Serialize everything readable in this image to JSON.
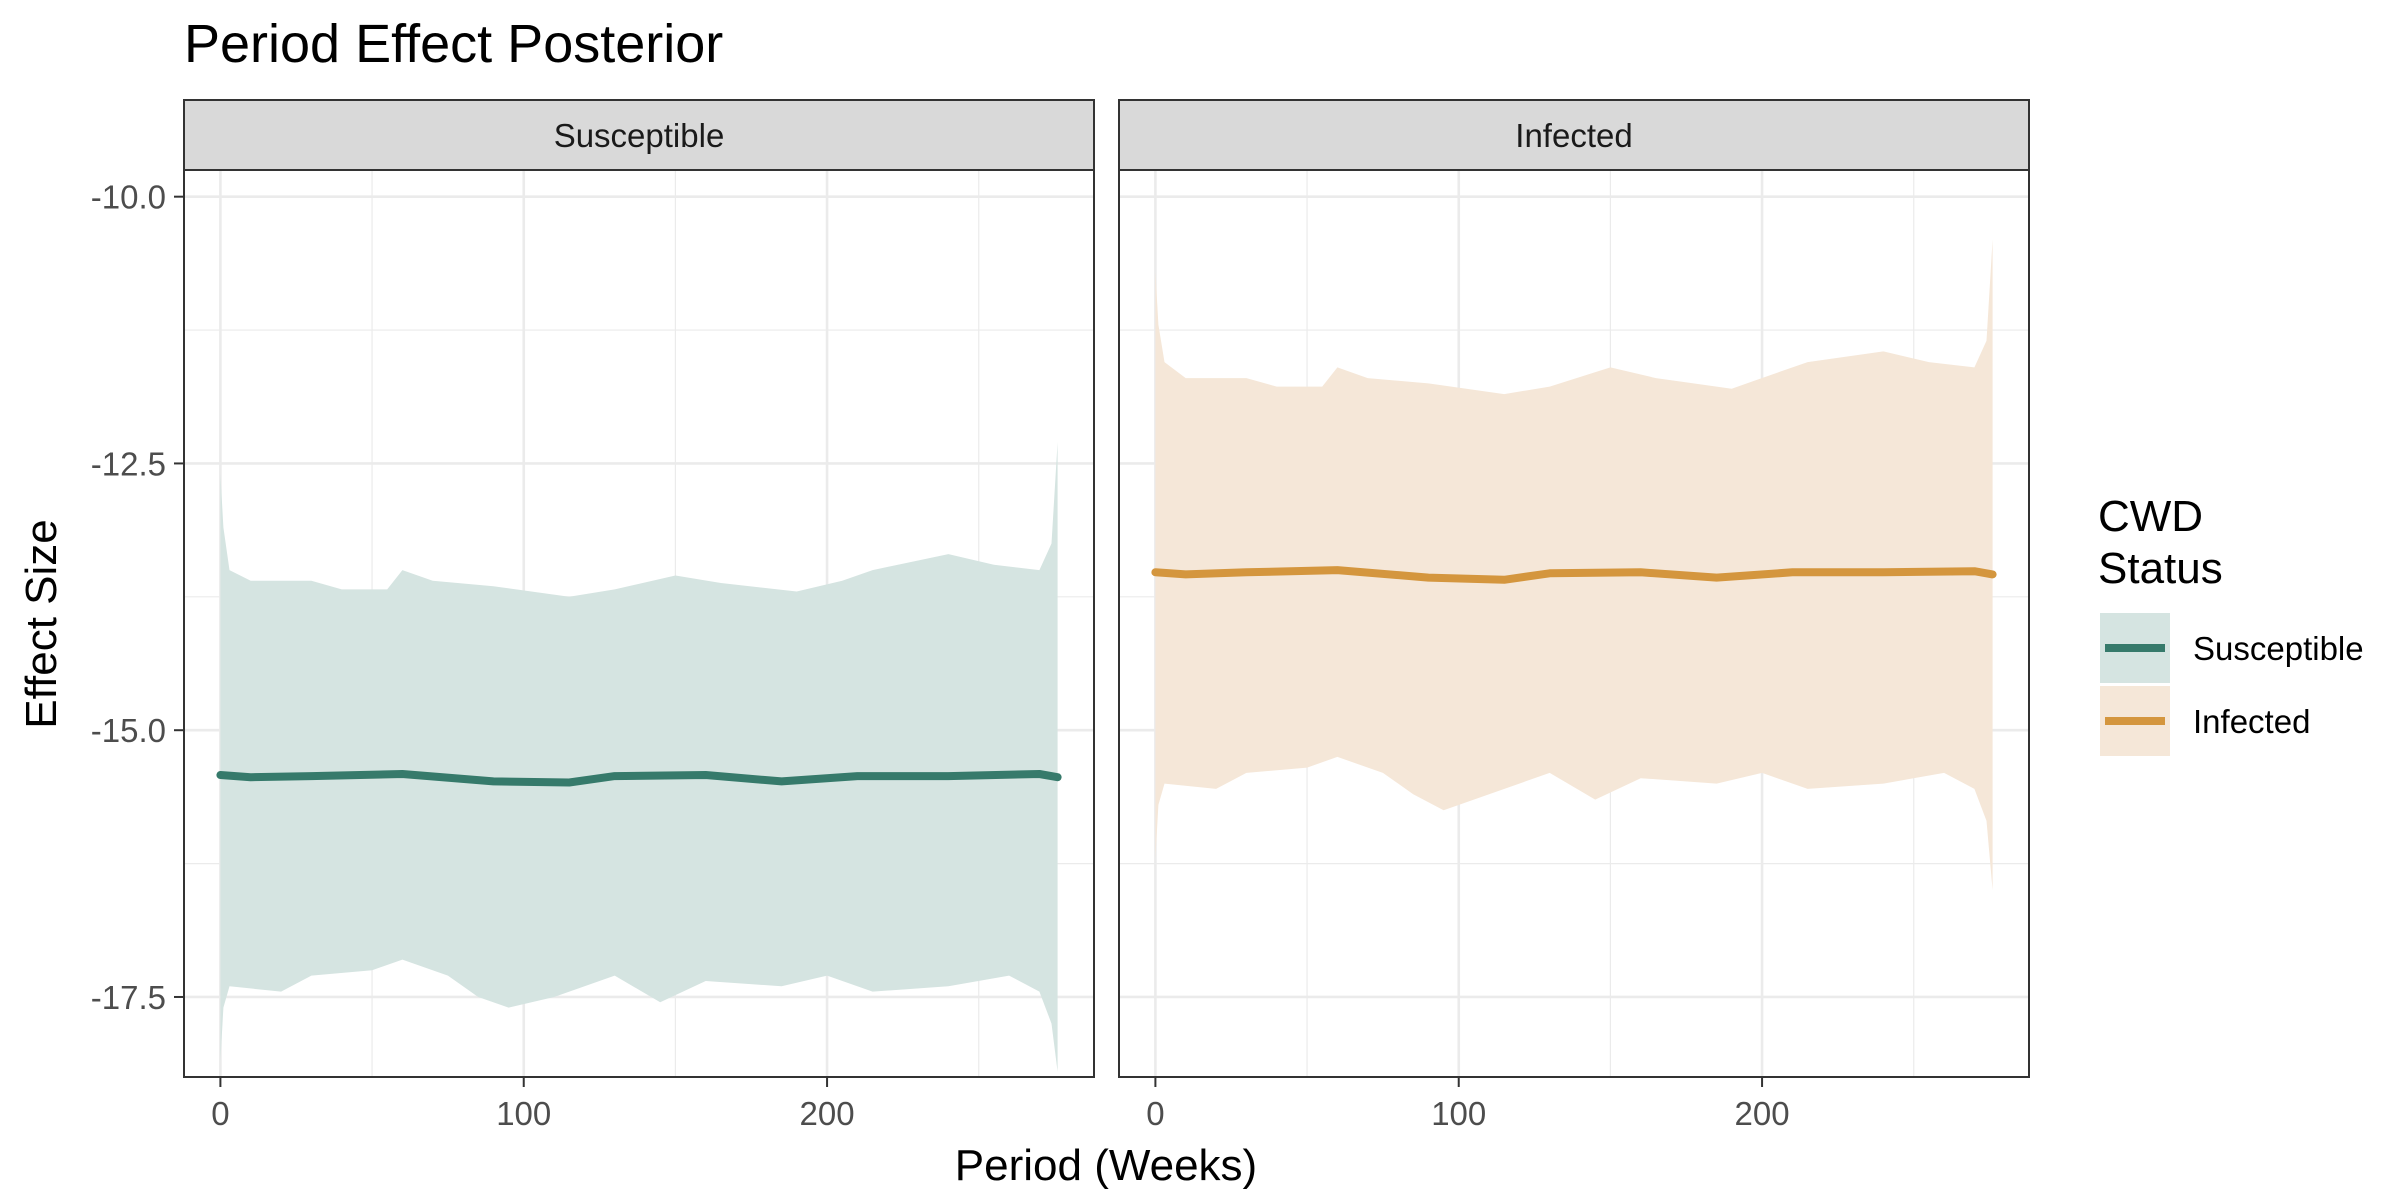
{
  "chart_data": {
    "type": "line",
    "title": "Period Effect Posterior",
    "xlabel": "Period (Weeks)",
    "ylabel": "Effect Size",
    "xlim": [
      -12,
      288
    ],
    "ylim": [
      -18.25,
      -9.75
    ],
    "x_ticks": [
      0,
      100,
      200
    ],
    "y_ticks": [
      -10.0,
      -12.5,
      -15.0,
      -17.5
    ],
    "y_tick_labels": [
      "-10.0",
      "-12.5",
      "-15.0",
      "-17.5"
    ],
    "grid": true,
    "legend": {
      "title_lines": [
        "CWD",
        "Status"
      ],
      "position": "right",
      "entries": [
        {
          "label": "Susceptible",
          "line_color": "#367a6b",
          "fill_color": "#d5e4e1"
        },
        {
          "label": "Infected",
          "line_color": "#d4963e",
          "fill_color": "#f5e7d8"
        }
      ]
    },
    "panels": [
      {
        "strip": "Susceptible",
        "series": {
          "line_color": "#367a6b",
          "fill_color": "#d5e4e1",
          "mean": [
            [
              0,
              -15.42
            ],
            [
              10,
              -15.44
            ],
            [
              30,
              -15.43
            ],
            [
              60,
              -15.41
            ],
            [
              90,
              -15.48
            ],
            [
              115,
              -15.49
            ],
            [
              130,
              -15.43
            ],
            [
              160,
              -15.42
            ],
            [
              185,
              -15.48
            ],
            [
              210,
              -15.43
            ],
            [
              240,
              -15.43
            ],
            [
              270,
              -15.41
            ],
            [
              276,
              -15.44
            ]
          ],
          "upper": [
            [
              0,
              -12.6
            ],
            [
              1,
              -13.1
            ],
            [
              3,
              -13.5
            ],
            [
              10,
              -13.6
            ],
            [
              30,
              -13.6
            ],
            [
              40,
              -13.68
            ],
            [
              55,
              -13.68
            ],
            [
              60,
              -13.5
            ],
            [
              70,
              -13.6
            ],
            [
              90,
              -13.65
            ],
            [
              115,
              -13.75
            ],
            [
              130,
              -13.68
            ],
            [
              150,
              -13.55
            ],
            [
              165,
              -13.62
            ],
            [
              190,
              -13.7
            ],
            [
              205,
              -13.6
            ],
            [
              215,
              -13.5
            ],
            [
              240,
              -13.35
            ],
            [
              255,
              -13.45
            ],
            [
              270,
              -13.5
            ],
            [
              274,
              -13.25
            ],
            [
              276,
              -12.3
            ]
          ],
          "lower": [
            [
              0,
              -18.1
            ],
            [
              1,
              -17.6
            ],
            [
              3,
              -17.4
            ],
            [
              20,
              -17.45
            ],
            [
              30,
              -17.3
            ],
            [
              50,
              -17.25
            ],
            [
              60,
              -17.15
            ],
            [
              75,
              -17.3
            ],
            [
              85,
              -17.5
            ],
            [
              95,
              -17.6
            ],
            [
              110,
              -17.5
            ],
            [
              130,
              -17.3
            ],
            [
              145,
              -17.55
            ],
            [
              160,
              -17.35
            ],
            [
              185,
              -17.4
            ],
            [
              200,
              -17.3
            ],
            [
              215,
              -17.45
            ],
            [
              240,
              -17.4
            ],
            [
              260,
              -17.3
            ],
            [
              270,
              -17.45
            ],
            [
              274,
              -17.75
            ],
            [
              276,
              -18.2
            ]
          ]
        }
      },
      {
        "strip": "Infected",
        "series": {
          "line_color": "#d4963e",
          "fill_color": "#f5e7d8",
          "mean": [
            [
              0,
              -13.52
            ],
            [
              10,
              -13.54
            ],
            [
              30,
              -13.52
            ],
            [
              60,
              -13.5
            ],
            [
              90,
              -13.57
            ],
            [
              115,
              -13.59
            ],
            [
              130,
              -13.53
            ],
            [
              160,
              -13.52
            ],
            [
              185,
              -13.57
            ],
            [
              210,
              -13.52
            ],
            [
              240,
              -13.52
            ],
            [
              270,
              -13.51
            ],
            [
              276,
              -13.54
            ]
          ],
          "upper": [
            [
              0,
              -10.7
            ],
            [
              1,
              -11.2
            ],
            [
              3,
              -11.55
            ],
            [
              10,
              -11.7
            ],
            [
              30,
              -11.7
            ],
            [
              40,
              -11.78
            ],
            [
              55,
              -11.78
            ],
            [
              60,
              -11.6
            ],
            [
              70,
              -11.7
            ],
            [
              90,
              -11.75
            ],
            [
              115,
              -11.85
            ],
            [
              130,
              -11.78
            ],
            [
              150,
              -11.6
            ],
            [
              165,
              -11.7
            ],
            [
              190,
              -11.8
            ],
            [
              205,
              -11.65
            ],
            [
              215,
              -11.55
            ],
            [
              240,
              -11.45
            ],
            [
              255,
              -11.55
            ],
            [
              270,
              -11.6
            ],
            [
              274,
              -11.35
            ],
            [
              276,
              -10.4
            ]
          ],
          "lower": [
            [
              0,
              -16.2
            ],
            [
              1,
              -15.7
            ],
            [
              3,
              -15.5
            ],
            [
              20,
              -15.55
            ],
            [
              30,
              -15.4
            ],
            [
              50,
              -15.35
            ],
            [
              60,
              -15.25
            ],
            [
              75,
              -15.4
            ],
            [
              85,
              -15.6
            ],
            [
              95,
              -15.75
            ],
            [
              110,
              -15.6
            ],
            [
              130,
              -15.4
            ],
            [
              145,
              -15.65
            ],
            [
              160,
              -15.45
            ],
            [
              185,
              -15.5
            ],
            [
              200,
              -15.4
            ],
            [
              215,
              -15.55
            ],
            [
              240,
              -15.5
            ],
            [
              260,
              -15.4
            ],
            [
              270,
              -15.55
            ],
            [
              274,
              -15.85
            ],
            [
              276,
              -16.5
            ]
          ]
        }
      }
    ]
  }
}
